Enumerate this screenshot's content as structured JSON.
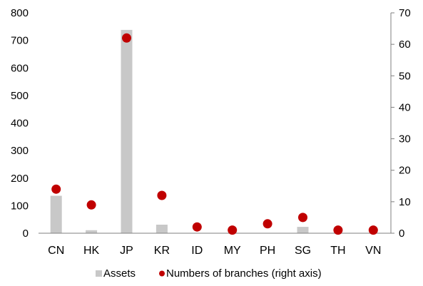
{
  "chart_data": {
    "type": "bar",
    "categories": [
      "CN",
      "HK",
      "JP",
      "KR",
      "ID",
      "MY",
      "PH",
      "SG",
      "TH",
      "VN"
    ],
    "series": [
      {
        "name": "Assets",
        "type": "bar",
        "axis": "left",
        "color": "#c8c8c8",
        "values": [
          136,
          11,
          738,
          31,
          0,
          0,
          0,
          23,
          0,
          0
        ]
      },
      {
        "name": "Numbers of branches (right axis)",
        "type": "scatter",
        "axis": "right",
        "color": "#c00000",
        "values": [
          14,
          9,
          62,
          12,
          2,
          1,
          3,
          5,
          1,
          1
        ]
      }
    ],
    "y_left": {
      "range": [
        0,
        800
      ],
      "ticks": [
        "0",
        "100",
        "200",
        "300",
        "400",
        "500",
        "600",
        "700",
        "800"
      ]
    },
    "y_right": {
      "range": [
        0,
        70
      ],
      "ticks": [
        "0",
        "10",
        "20",
        "30",
        "40",
        "50",
        "60",
        "70"
      ]
    },
    "title": "",
    "xlabel": "",
    "ylabel": "",
    "grid": false,
    "legend_placement": "bottom"
  }
}
